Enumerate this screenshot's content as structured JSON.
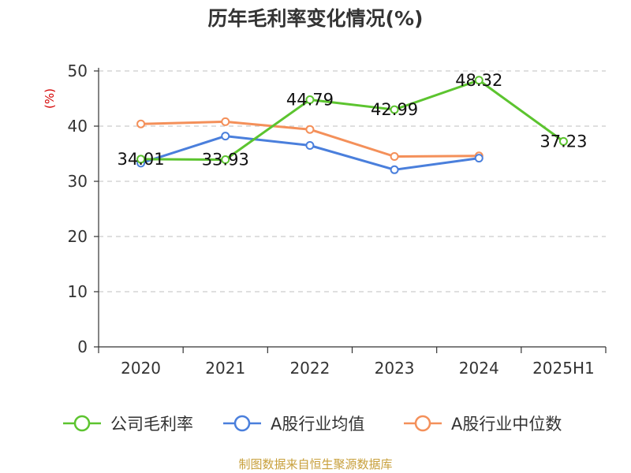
{
  "chart_data": {
    "type": "line",
    "title": "历年毛利率变化情况(%)",
    "ylabel": "(%)",
    "xlabel": "",
    "categories": [
      "2020",
      "2021",
      "2022",
      "2023",
      "2024",
      "2025H1"
    ],
    "ylim": [
      0,
      50
    ],
    "yticks": [
      0,
      10,
      20,
      30,
      40,
      50
    ],
    "grid": "horizontal dashed",
    "legend_position": "bottom",
    "series": [
      {
        "name": "公司毛利率",
        "color": "#5cc42f",
        "values": [
          34.01,
          33.93,
          44.79,
          42.99,
          48.32,
          37.23
        ],
        "labels": [
          "34.01",
          "33.93",
          "44.79",
          "42.99",
          "48.32",
          "37.23"
        ]
      },
      {
        "name": "A股行业均值",
        "color": "#4a7fdc",
        "values": [
          33.3,
          38.2,
          36.5,
          32.1,
          34.2,
          null
        ]
      },
      {
        "name": "A股行业中位数",
        "color": "#f4905a",
        "values": [
          40.4,
          40.8,
          39.4,
          34.5,
          34.6,
          null
        ]
      }
    ]
  },
  "source": "制图数据来自恒生聚源数据库"
}
